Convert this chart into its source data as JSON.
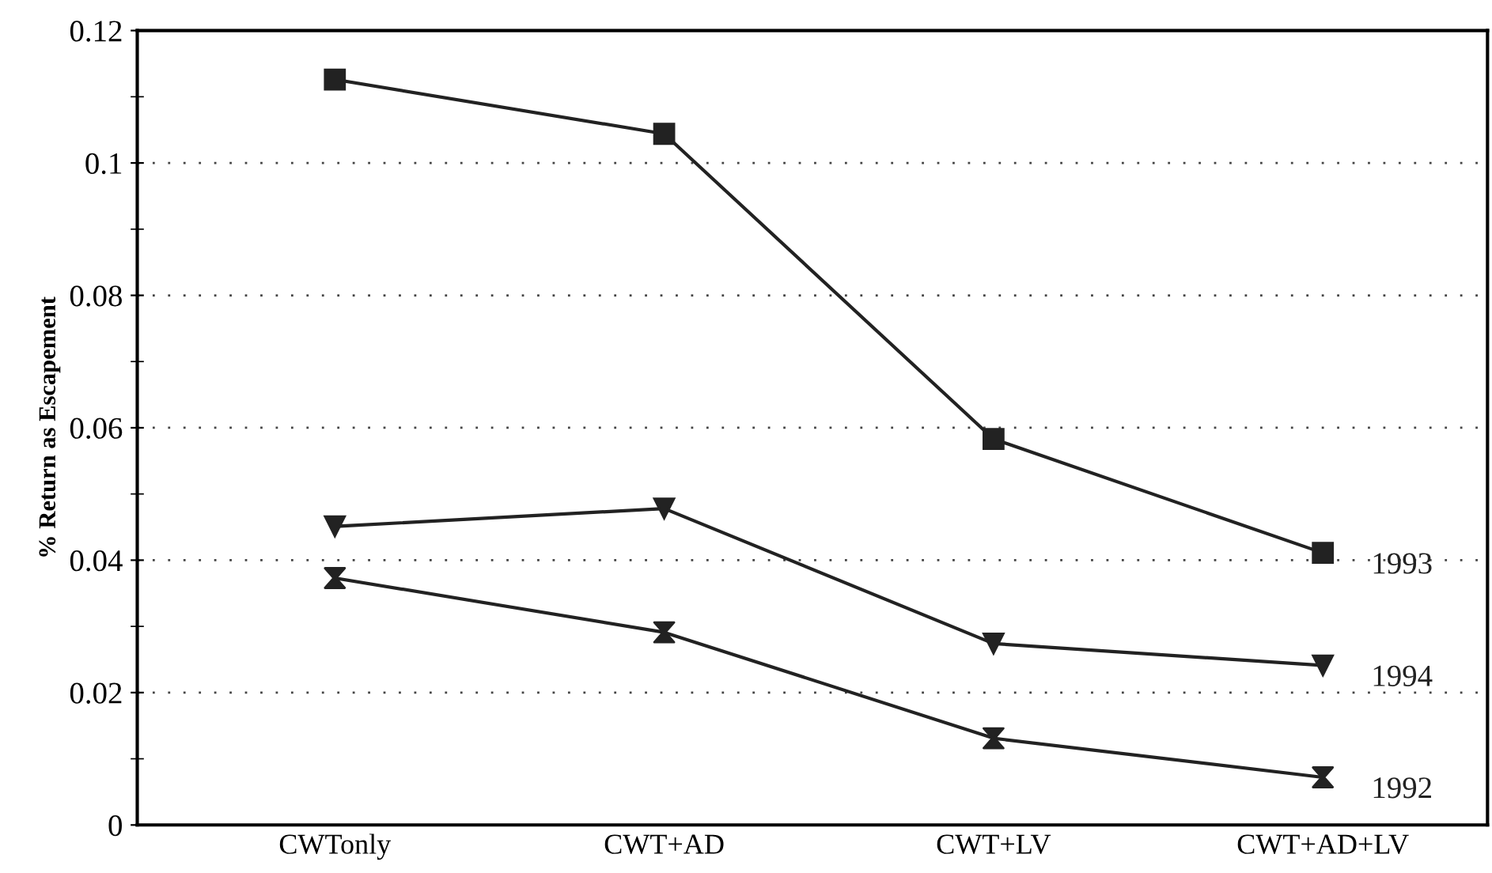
{
  "chart_data": {
    "type": "line",
    "ylabel": "% Return as Escapement",
    "categories": [
      "CWTonly",
      "CWT+AD",
      "CWT+LV",
      "CWT+AD+LV"
    ],
    "series": [
      {
        "name": "1993",
        "color": "#222222",
        "marker": "square",
        "values": [
          0.1126,
          0.1044,
          0.0583,
          0.0411
        ]
      },
      {
        "name": "1994",
        "color": "#222222",
        "marker": "triangle",
        "values": [
          0.0451,
          0.0478,
          0.0274,
          0.0241
        ]
      },
      {
        "name": "1992",
        "color": "#222222",
        "marker": "cross",
        "values": [
          0.0373,
          0.0291,
          0.0131,
          0.0072
        ]
      }
    ],
    "ylim": [
      0,
      0.12
    ],
    "yticks": [
      0,
      0.02,
      0.04,
      0.06,
      0.08,
      {
        "value": 0.1,
        "label": "0.1"
      },
      0.12
    ],
    "grid": "y",
    "legend": false,
    "line_style": "solid"
  }
}
